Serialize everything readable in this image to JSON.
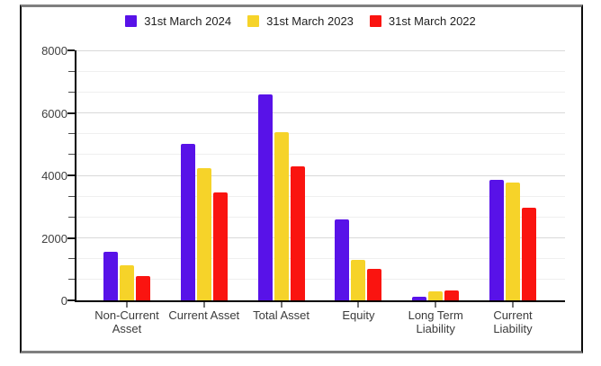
{
  "chart_data": {
    "type": "bar",
    "title": "",
    "categories": [
      "Non-Current Asset",
      "Current Asset",
      "Total Asset",
      "Equity",
      "Long Term Liability",
      "Current Liability"
    ],
    "series": [
      {
        "name": "31st March 2024",
        "color": "#5812e8",
        "values": [
          1550,
          5010,
          6600,
          2590,
          120,
          3870
        ]
      },
      {
        "name": "31st March 2023",
        "color": "#f6d329",
        "values": [
          1130,
          4220,
          5370,
          1310,
          290,
          3780
        ]
      },
      {
        "name": "31st March 2022",
        "color": "#fa1410",
        "values": [
          790,
          3450,
          4300,
          1000,
          320,
          2960
        ]
      }
    ],
    "xlabel": "",
    "ylabel": "",
    "ylim": [
      0,
      8000
    ],
    "y_major_ticks": [
      0,
      2000,
      4000,
      6000,
      8000
    ],
    "y_minor_divisions_per_major": 3,
    "grid": true,
    "legend_position": "top"
  },
  "colors": {
    "grid_major": "#d9d9d9",
    "grid_minor": "#efefef",
    "axis": "#000000",
    "x_tick": "#757575",
    "axis_label_text": "#3b3b3b",
    "legend_text": "#212121",
    "frame_sides": "#0c0c0c",
    "frame_top_bottom": "#7f7f7f",
    "background": "#ffffff"
  }
}
